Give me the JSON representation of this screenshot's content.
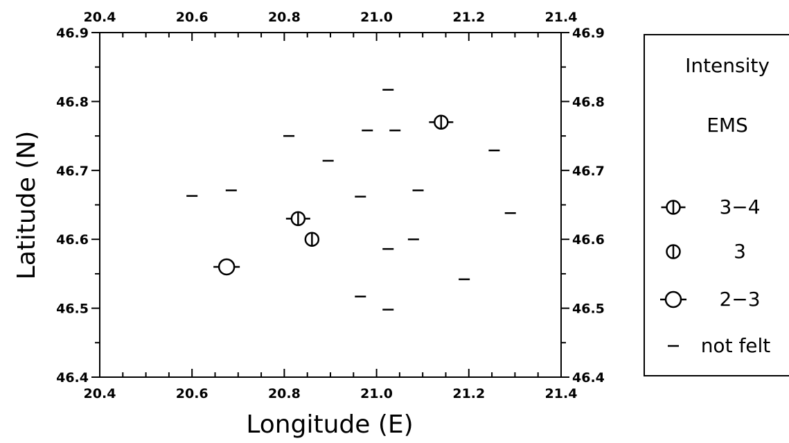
{
  "chart_data": {
    "type": "scatter",
    "title": "",
    "xlabel": "Longitude (E)",
    "ylabel": "Latitude (N)",
    "xlim": [
      20.4,
      21.4
    ],
    "ylim": [
      46.4,
      46.9
    ],
    "x_ticks": [
      "20.4",
      "20.6",
      "20.8",
      "21.0",
      "21.2",
      "21.4"
    ],
    "y_ticks": [
      "46.4",
      "46.5",
      "46.6",
      "46.7",
      "46.8",
      "46.9"
    ],
    "grid": false,
    "legend_position": "right",
    "legend": {
      "title_lines": [
        "Intensity",
        "EMS"
      ],
      "entries": [
        {
          "symbol": "circle-bar-tick",
          "label": "3−4"
        },
        {
          "symbol": "circle-bar",
          "label": "3"
        },
        {
          "symbol": "circle-tick",
          "label": "2−3"
        },
        {
          "symbol": "dash",
          "label": "not felt"
        }
      ]
    },
    "series": [
      {
        "name": "3−4",
        "symbol": "circle-bar-tick",
        "points": [
          [
            21.14,
            46.77
          ],
          [
            20.83,
            46.63
          ]
        ]
      },
      {
        "name": "3",
        "symbol": "circle-bar",
        "points": [
          [
            20.86,
            46.6
          ]
        ]
      },
      {
        "name": "2−3",
        "symbol": "circle-tick",
        "points": [
          [
            20.675,
            46.56
          ]
        ]
      },
      {
        "name": "not felt",
        "symbol": "dash",
        "points": [
          [
            21.025,
            46.817
          ],
          [
            20.98,
            46.758
          ],
          [
            21.04,
            46.758
          ],
          [
            20.81,
            46.75
          ],
          [
            21.255,
            46.729
          ],
          [
            20.895,
            46.714
          ],
          [
            20.685,
            46.671
          ],
          [
            21.09,
            46.671
          ],
          [
            20.6,
            46.663
          ],
          [
            20.965,
            46.662
          ],
          [
            21.29,
            46.638
          ],
          [
            21.08,
            46.6
          ],
          [
            21.025,
            46.586
          ],
          [
            21.19,
            46.542
          ],
          [
            20.965,
            46.517
          ],
          [
            21.025,
            46.498
          ]
        ]
      }
    ]
  }
}
